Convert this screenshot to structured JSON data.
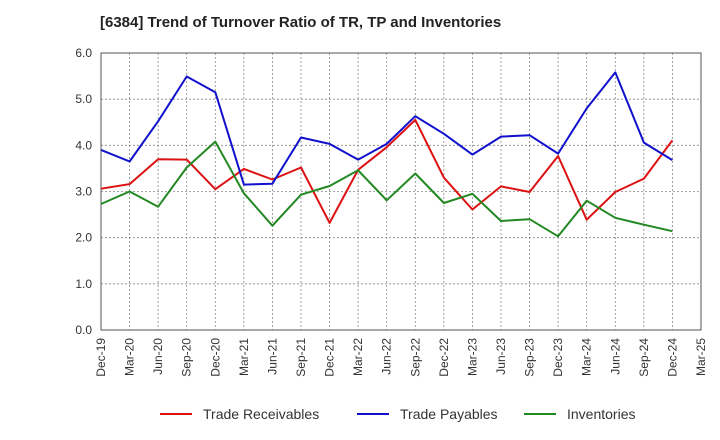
{
  "chart_data": {
    "type": "line",
    "title": "[6384]  Trend of Turnover Ratio of TR, TP and Inventories",
    "xlabel": "",
    "ylabel": "",
    "ylim": [
      0,
      6.0
    ],
    "yticks": [
      "0.0",
      "1.0",
      "2.0",
      "3.0",
      "4.0",
      "5.0",
      "6.0"
    ],
    "xtick_labels": [
      "Dec-19",
      "Mar-20",
      "Jun-20",
      "Sep-20",
      "Dec-20",
      "Mar-21",
      "Jun-21",
      "Sep-21",
      "Dec-21",
      "Mar-22",
      "Jun-22",
      "Sep-22",
      "Dec-22",
      "Mar-23",
      "Jun-23",
      "Sep-23",
      "Dec-23",
      "Mar-24",
      "Jun-24",
      "Sep-24",
      "Dec-24",
      "Mar-25"
    ],
    "grid": true,
    "legend_position": "bottom",
    "x": [
      "Dec-19",
      "Mar-20",
      "Jun-20",
      "Sep-20",
      "Dec-20",
      "Mar-21",
      "Jun-21",
      "Sep-21",
      "Dec-21",
      "Mar-22",
      "Jun-22",
      "Sep-22",
      "Dec-22",
      "Mar-23",
      "Jun-23",
      "Sep-23",
      "Dec-23",
      "Mar-24",
      "Jun-24",
      "Sep-24",
      "Dec-24"
    ],
    "series": [
      {
        "name": "Trade Receivables",
        "color": "#dd1111",
        "values": [
          3.06,
          3.16,
          3.7,
          3.69,
          3.05,
          3.49,
          3.26,
          3.52,
          2.32,
          3.47,
          3.96,
          4.55,
          3.3,
          2.61,
          3.11,
          2.99,
          3.77,
          2.39,
          2.99,
          3.28,
          4.11
        ]
      },
      {
        "name": "Trade Payables",
        "color": "#1111cc",
        "values": [
          3.9,
          3.65,
          4.52,
          5.49,
          5.15,
          3.15,
          3.17,
          4.17,
          4.03,
          3.69,
          4.03,
          4.63,
          4.25,
          3.8,
          4.19,
          4.22,
          3.82,
          4.8,
          5.58,
          4.06,
          3.68
        ]
      },
      {
        "name": "Inventories",
        "color": "#228822",
        "values": [
          2.73,
          3.0,
          2.67,
          3.52,
          4.08,
          2.96,
          2.26,
          2.93,
          3.12,
          3.46,
          2.81,
          3.39,
          2.75,
          2.95,
          2.36,
          2.4,
          2.03,
          2.8,
          2.43,
          2.28,
          2.14
        ]
      }
    ]
  }
}
